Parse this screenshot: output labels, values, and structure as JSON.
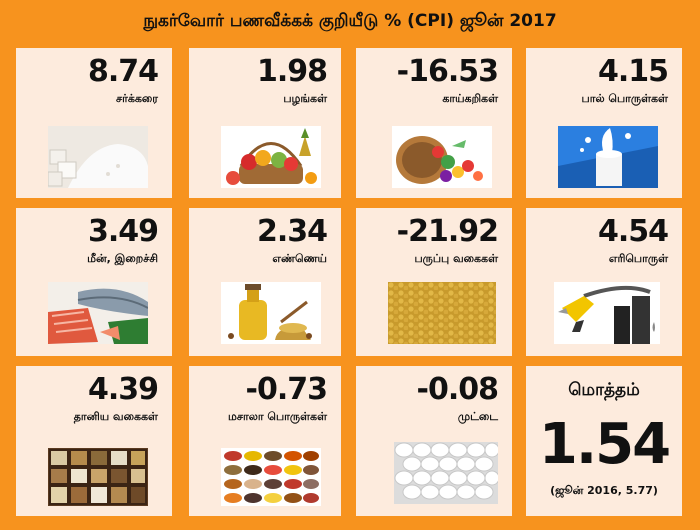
{
  "title": "நுகர்வோர் பணவீக்கக் குறியீடு % (CPI) ஜூன் 2017",
  "colors": {
    "background": "#F7931E",
    "card": "#FDEBDD",
    "text": "#111111"
  },
  "items": [
    {
      "value": "8.74",
      "label": "சர்க்கரை",
      "icon": "sugar-image"
    },
    {
      "value": "1.98",
      "label": "பழங்கள்",
      "icon": "fruits-image"
    },
    {
      "value": "-16.53",
      "label": "காய்கறிகள்",
      "icon": "vegetables-image"
    },
    {
      "value": "4.15",
      "label": "பால் பொருள்கள்",
      "icon": "milk-image"
    },
    {
      "value": "3.49",
      "label": "மீன், இறைச்சி",
      "icon": "fish-meat-image"
    },
    {
      "value": "2.34",
      "label": "எண்ணெய்",
      "icon": "oil-image"
    },
    {
      "value": "-21.92",
      "label": "பருப்பு வகைகள்",
      "icon": "pulses-image"
    },
    {
      "value": "4.54",
      "label": "எரிபொருள்",
      "icon": "fuel-pump-image"
    },
    {
      "value": "4.39",
      "label": "தானிய வகைகள்",
      "icon": "grains-image"
    },
    {
      "value": "-0.73",
      "label": "மசாலா பொருள்கள்",
      "icon": "spices-image"
    },
    {
      "value": "-0.08",
      "label": "முட்டை",
      "icon": "eggs-image"
    }
  ],
  "total": {
    "label": "மொத்தம்",
    "value": "1.54",
    "note": "(ஜூன் 2016, 5.77)"
  }
}
